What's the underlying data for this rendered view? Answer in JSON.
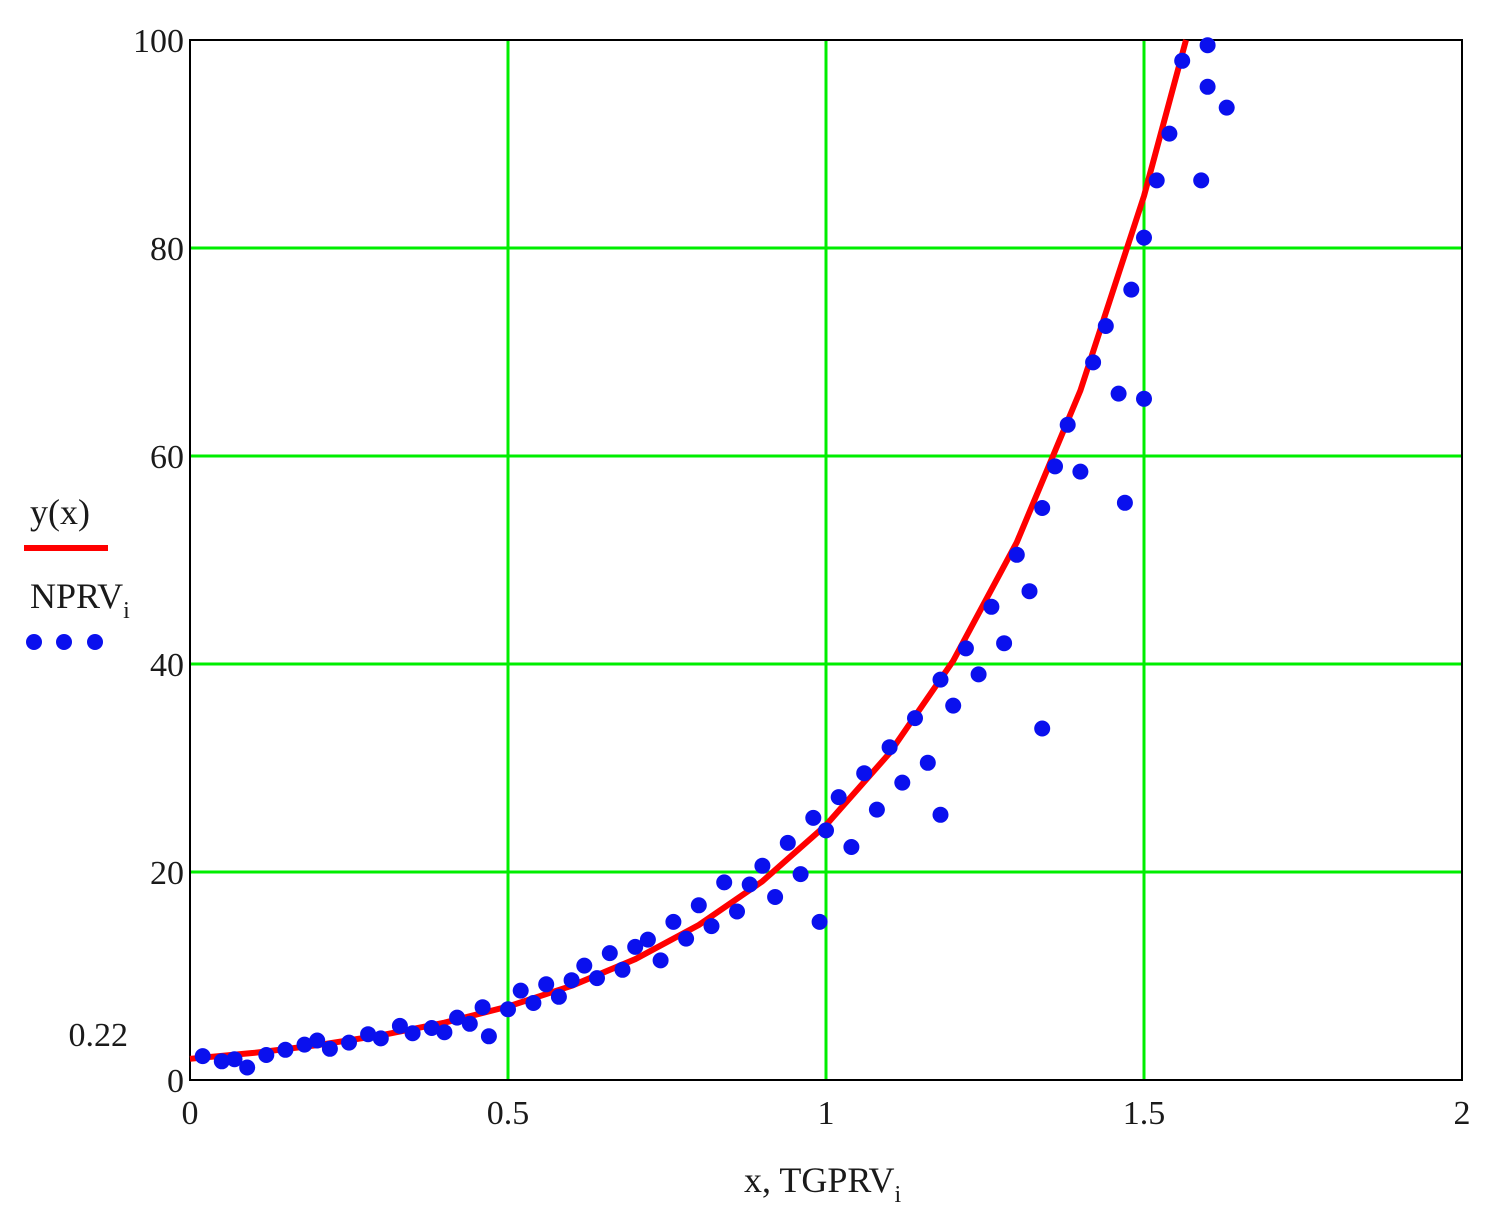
{
  "chart_data": {
    "type": "scatter",
    "xlabel": "x, TGPRV",
    "xlabel_sub": "i",
    "xlim": [
      0,
      2
    ],
    "ylim": [
      0,
      100
    ],
    "x_ticks": [
      "0",
      "0.5",
      "1",
      "1.5",
      "2"
    ],
    "y_ticks": [
      "0",
      "20",
      "40",
      "60",
      "80",
      "100"
    ],
    "extra_y_label": "0.22",
    "extra_y_value": 3.5,
    "grid": true,
    "legend_placement": "left",
    "colors": {
      "grid": "#00ee00",
      "curve": "#ff0000",
      "points": "#0a10ee",
      "frame": "#000000"
    },
    "series": [
      {
        "name": "y(x)",
        "type": "line",
        "function": "y = 2.04 * exp(2.485 * x)",
        "points": [
          [
            0,
            2.04
          ],
          [
            0.1,
            2.61
          ],
          [
            0.2,
            3.35
          ],
          [
            0.3,
            4.3
          ],
          [
            0.4,
            5.51
          ],
          [
            0.5,
            7.07
          ],
          [
            0.6,
            9.06
          ],
          [
            0.7,
            11.62
          ],
          [
            0.8,
            14.9
          ],
          [
            0.9,
            19.11
          ],
          [
            1.0,
            24.51
          ],
          [
            1.1,
            31.43
          ],
          [
            1.2,
            40.31
          ],
          [
            1.3,
            51.7
          ],
          [
            1.4,
            66.3
          ],
          [
            1.5,
            85.0
          ],
          [
            1.566,
            100
          ]
        ]
      },
      {
        "name": "NPRV",
        "name_sub": "i",
        "type": "scatter",
        "points": [
          [
            0.02,
            2.3
          ],
          [
            0.05,
            1.8
          ],
          [
            0.07,
            2.0
          ],
          [
            0.09,
            1.2
          ],
          [
            0.12,
            2.4
          ],
          [
            0.15,
            2.9
          ],
          [
            0.18,
            3.4
          ],
          [
            0.2,
            3.8
          ],
          [
            0.22,
            3.0
          ],
          [
            0.25,
            3.6
          ],
          [
            0.28,
            4.4
          ],
          [
            0.3,
            4.0
          ],
          [
            0.33,
            5.2
          ],
          [
            0.35,
            4.5
          ],
          [
            0.38,
            5.0
          ],
          [
            0.4,
            4.6
          ],
          [
            0.42,
            6.0
          ],
          [
            0.44,
            5.4
          ],
          [
            0.46,
            7.0
          ],
          [
            0.47,
            4.2
          ],
          [
            0.5,
            6.8
          ],
          [
            0.52,
            8.6
          ],
          [
            0.54,
            7.4
          ],
          [
            0.56,
            9.2
          ],
          [
            0.58,
            8.0
          ],
          [
            0.6,
            9.6
          ],
          [
            0.62,
            11.0
          ],
          [
            0.64,
            9.8
          ],
          [
            0.66,
            12.2
          ],
          [
            0.68,
            10.6
          ],
          [
            0.7,
            12.8
          ],
          [
            0.72,
            13.5
          ],
          [
            0.74,
            11.5
          ],
          [
            0.76,
            15.2
          ],
          [
            0.78,
            13.6
          ],
          [
            0.8,
            16.8
          ],
          [
            0.82,
            14.8
          ],
          [
            0.84,
            19.0
          ],
          [
            0.86,
            16.2
          ],
          [
            0.88,
            18.8
          ],
          [
            0.9,
            20.6
          ],
          [
            0.92,
            17.6
          ],
          [
            0.94,
            22.8
          ],
          [
            0.96,
            19.8
          ],
          [
            0.98,
            25.2
          ],
          [
            0.99,
            15.2
          ],
          [
            1.0,
            24.0
          ],
          [
            1.02,
            27.2
          ],
          [
            1.04,
            22.4
          ],
          [
            1.06,
            29.5
          ],
          [
            1.08,
            26.0
          ],
          [
            1.1,
            32.0
          ],
          [
            1.12,
            28.6
          ],
          [
            1.14,
            34.8
          ],
          [
            1.16,
            30.5
          ],
          [
            1.18,
            38.5
          ],
          [
            1.18,
            25.5
          ],
          [
            1.2,
            36.0
          ],
          [
            1.22,
            41.5
          ],
          [
            1.24,
            39.0
          ],
          [
            1.26,
            45.5
          ],
          [
            1.28,
            42.0
          ],
          [
            1.3,
            50.5
          ],
          [
            1.32,
            47.0
          ],
          [
            1.34,
            55.0
          ],
          [
            1.34,
            33.8
          ],
          [
            1.36,
            59.0
          ],
          [
            1.38,
            63.0
          ],
          [
            1.4,
            58.5
          ],
          [
            1.42,
            69.0
          ],
          [
            1.44,
            72.5
          ],
          [
            1.46,
            66.0
          ],
          [
            1.47,
            55.5
          ],
          [
            1.48,
            76.0
          ],
          [
            1.5,
            81.0
          ],
          [
            1.5,
            65.5
          ],
          [
            1.52,
            86.5
          ],
          [
            1.54,
            91.0
          ],
          [
            1.56,
            98.0
          ],
          [
            1.6,
            95.5
          ],
          [
            1.6,
            99.5
          ],
          [
            1.63,
            93.5
          ],
          [
            1.59,
            86.5
          ]
        ]
      }
    ]
  }
}
